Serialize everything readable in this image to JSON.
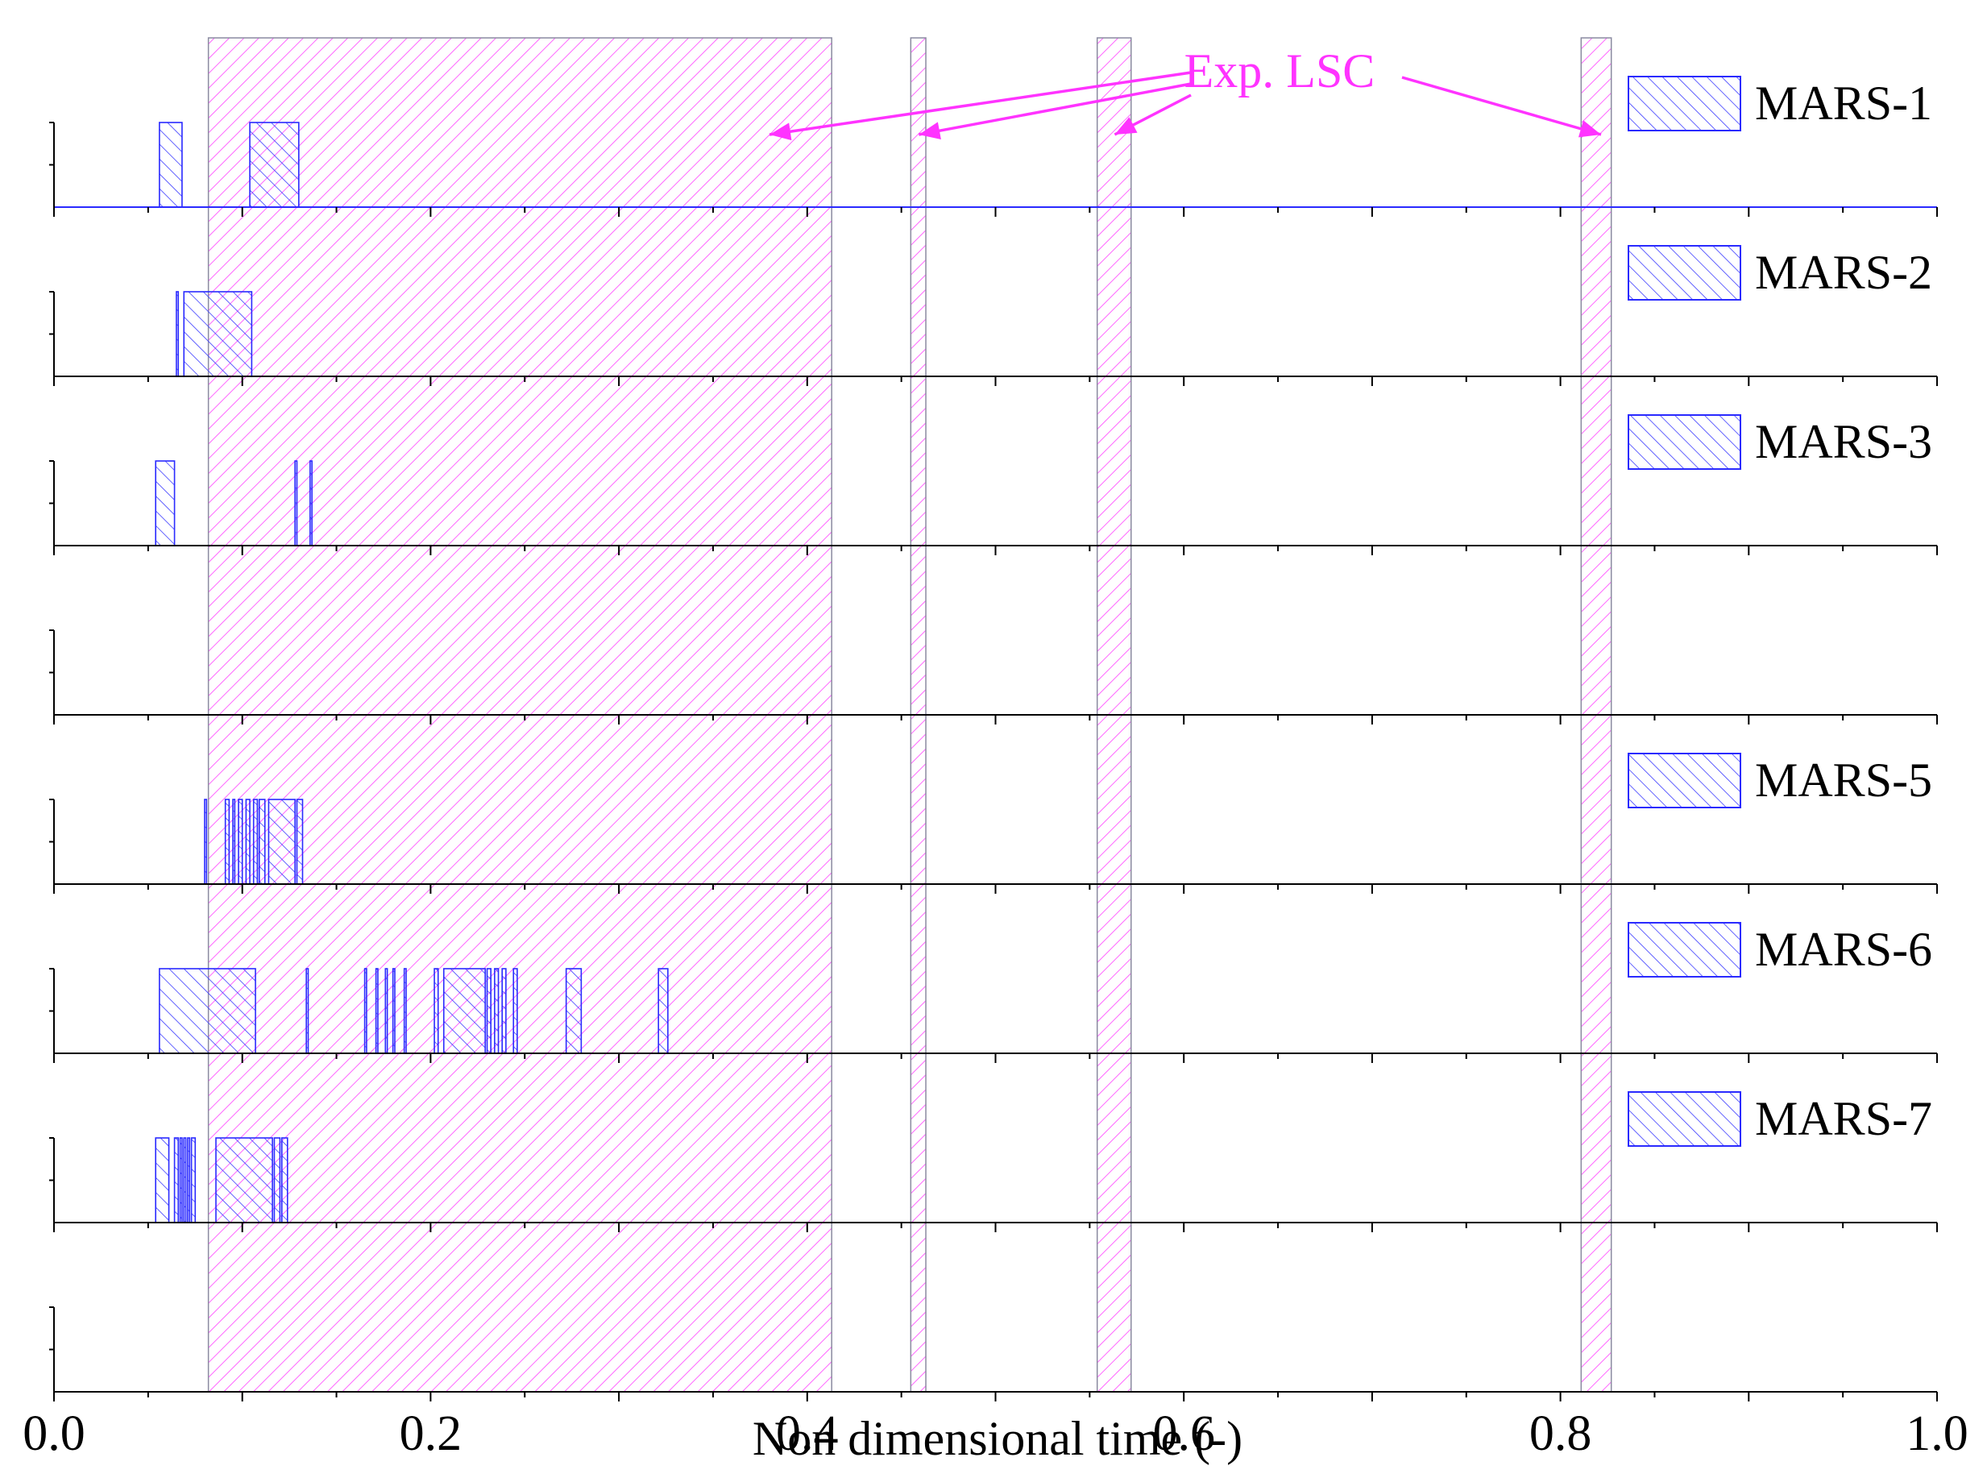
{
  "chart_data": {
    "type": "bar",
    "xlabel": "Non dimensional time (-)",
    "xlim": [
      0.0,
      1.0
    ],
    "x_ticks": [
      "0.0",
      "0.2",
      "0.4",
      "0.6",
      "0.8",
      "1.0"
    ],
    "grid": false,
    "legend": "right",
    "colors": {
      "simulation": "#2a2aff",
      "experiment": "#ff33ff",
      "axis": "#000000"
    },
    "experiment": {
      "name": "Exp. LSC",
      "intervals": [
        [
          0.082,
          0.413
        ],
        [
          0.455,
          0.463
        ],
        [
          0.554,
          0.572
        ],
        [
          0.811,
          0.827
        ]
      ]
    },
    "series": [
      {
        "name": "MARS-1",
        "intervals": [
          [
            0.056,
            0.068
          ],
          [
            0.104,
            0.13
          ]
        ]
      },
      {
        "name": "MARS-2",
        "intervals": [
          [
            0.065,
            0.066
          ],
          [
            0.069,
            0.105
          ]
        ]
      },
      {
        "name": "MARS-3",
        "intervals": [
          [
            0.054,
            0.064
          ],
          [
            0.128,
            0.129
          ],
          [
            0.136,
            0.137
          ]
        ]
      },
      {
        "name": "",
        "intervals": []
      },
      {
        "name": "MARS-5",
        "intervals": [
          [
            0.08,
            0.081
          ],
          [
            0.091,
            0.093
          ],
          [
            0.095,
            0.096
          ],
          [
            0.098,
            0.1
          ],
          [
            0.102,
            0.104
          ],
          [
            0.106,
            0.108
          ],
          [
            0.109,
            0.112
          ],
          [
            0.114,
            0.128
          ],
          [
            0.129,
            0.132
          ]
        ]
      },
      {
        "name": "MARS-6",
        "intervals": [
          [
            0.056,
            0.107
          ],
          [
            0.134,
            0.135
          ],
          [
            0.165,
            0.166
          ],
          [
            0.171,
            0.172
          ],
          [
            0.176,
            0.177
          ],
          [
            0.18,
            0.181
          ],
          [
            0.186,
            0.187
          ],
          [
            0.202,
            0.204
          ],
          [
            0.207,
            0.229
          ],
          [
            0.23,
            0.232
          ],
          [
            0.234,
            0.236
          ],
          [
            0.238,
            0.24
          ],
          [
            0.244,
            0.246
          ],
          [
            0.272,
            0.28
          ],
          [
            0.321,
            0.326
          ]
        ]
      },
      {
        "name": "MARS-7",
        "intervals": [
          [
            0.054,
            0.061
          ],
          [
            0.064,
            0.066
          ],
          [
            0.067,
            0.068
          ],
          [
            0.069,
            0.07
          ],
          [
            0.071,
            0.072
          ],
          [
            0.073,
            0.075
          ],
          [
            0.086,
            0.116
          ],
          [
            0.117,
            0.12
          ],
          [
            0.121,
            0.124
          ]
        ]
      },
      {
        "name": "",
        "intervals": []
      }
    ]
  }
}
